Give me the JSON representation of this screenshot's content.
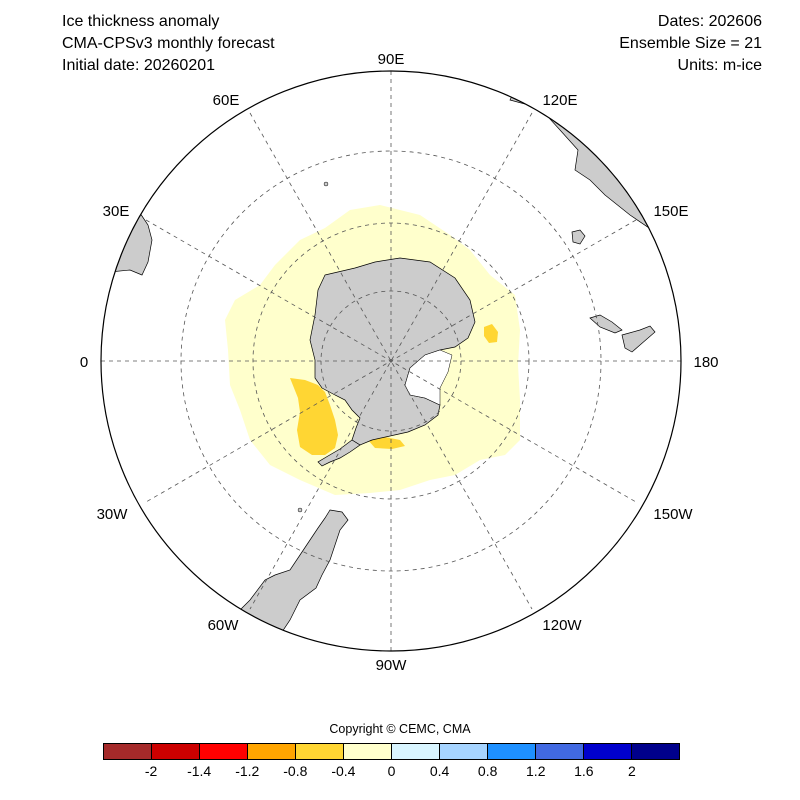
{
  "header": {
    "title": "Ice thickness anomaly",
    "model": "CMA-CPSv3 monthly forecast",
    "initial_date": "Initial date: 20260201",
    "dates": "Dates: 202606",
    "ensemble": "Ensemble Size = 21",
    "units": "Units: m-ice"
  },
  "map": {
    "projection": "south-polar-stereographic",
    "land_color": "#cccccc",
    "longitude_labels": {
      "lon_0": "0",
      "lon_30E": "30E",
      "lon_60E": "60E",
      "lon_90E": "90E",
      "lon_120E": "120E",
      "lon_150E": "150E",
      "lon_180": "180",
      "lon_150W": "150W",
      "lon_120W": "120W",
      "lon_90W": "90W",
      "lon_60W": "60W",
      "lon_30W": "30W"
    }
  },
  "copyright": "Copyright © CEMC, CMA",
  "colorbar": {
    "colors": [
      "#a52a2a",
      "#cc0000",
      "#ff0000",
      "#ffa500",
      "#ffd633",
      "#ffffcc",
      "#d9f5ff",
      "#a6d4ff",
      "#1e90ff",
      "#4169e1",
      "#0000cd",
      "#00008b"
    ],
    "ticks": [
      "-2",
      "-1.4",
      "-1.2",
      "-0.8",
      "-0.4",
      "0",
      "0.4",
      "0.8",
      "1.2",
      "1.6",
      "2"
    ]
  }
}
